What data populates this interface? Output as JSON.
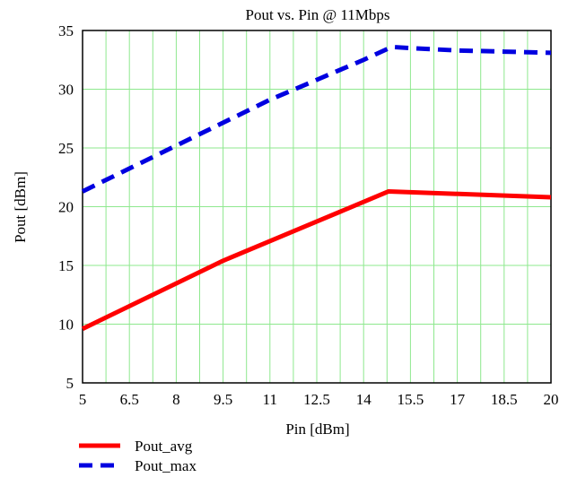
{
  "chart_data": {
    "type": "line",
    "title": "Pout vs. Pin @ 11Mbps",
    "xlabel": "Pin [dBm]",
    "ylabel": "Pout [dBm]",
    "xlim": [
      5,
      20
    ],
    "ylim": [
      5,
      35
    ],
    "xticks": [
      5,
      6.5,
      8,
      9.5,
      11,
      12.5,
      14,
      15.5,
      17,
      18.5,
      20
    ],
    "xtick_labels": [
      "5",
      "6.5",
      "8",
      "9.5",
      "11",
      "12.5",
      "14",
      "15.5",
      "17",
      "18.5",
      "20"
    ],
    "yticks": [
      5,
      10,
      15,
      20,
      25,
      30,
      35
    ],
    "ytick_labels": [
      "5",
      "10",
      "15",
      "20",
      "25",
      "30",
      "35"
    ],
    "x_minor_step": 0.75,
    "grid": true,
    "legend_position": "bottom-left",
    "series": [
      {
        "name": "Pout_avg",
        "color": "#ff0000",
        "style": "solid",
        "x": [
          5,
          9.5,
          14.8,
          20
        ],
        "y": [
          9.6,
          15.4,
          21.3,
          20.8
        ]
      },
      {
        "name": "Pout_max",
        "color": "#0000e0",
        "style": "dashed",
        "x": [
          5,
          8,
          11,
          14,
          14.9,
          15.5,
          17,
          18.5,
          20
        ],
        "y": [
          21.3,
          25.2,
          29.1,
          32.5,
          33.6,
          33.5,
          33.3,
          33.2,
          33.1
        ]
      }
    ]
  }
}
